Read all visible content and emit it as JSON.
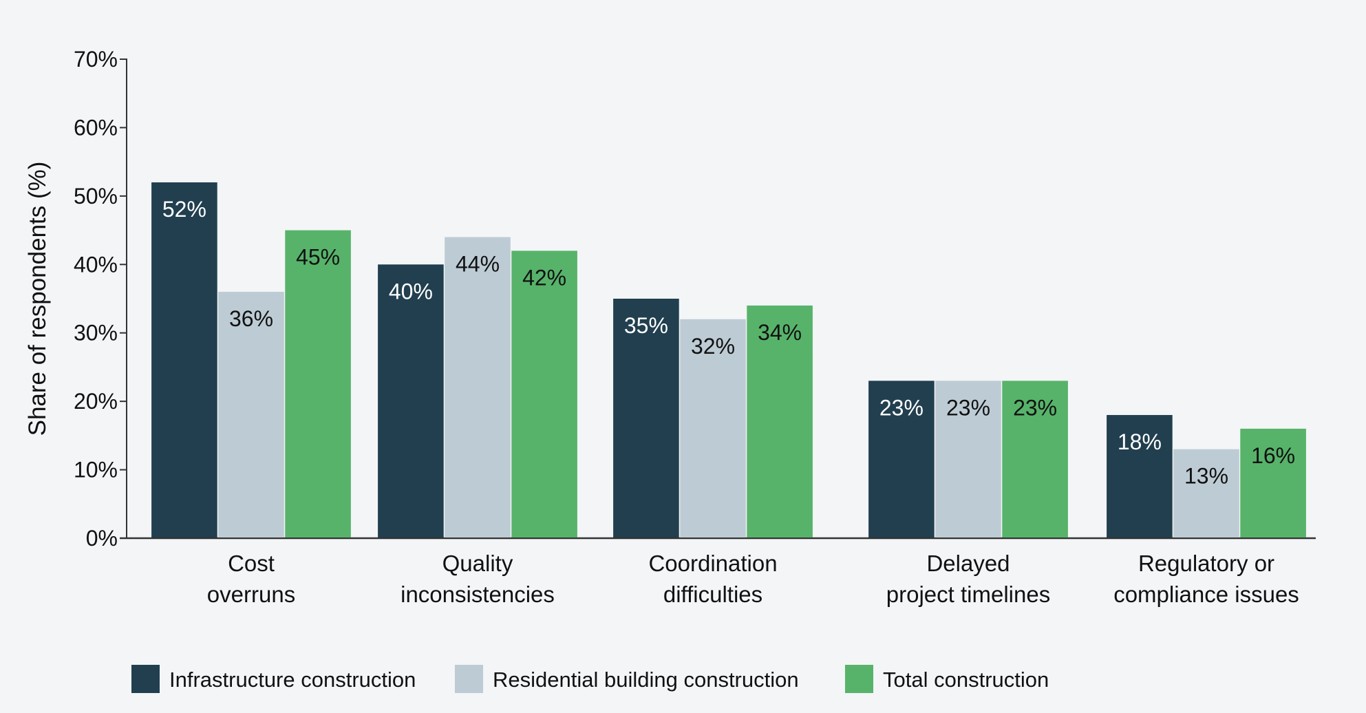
{
  "chart_data": {
    "type": "bar",
    "title": "",
    "xlabel": "",
    "ylabel": "Share of respondents (%)",
    "ylim": [
      0,
      70
    ],
    "yticks": [
      "0%",
      "10%",
      "20%",
      "30%",
      "40%",
      "50%",
      "60%",
      "70%"
    ],
    "grid": false,
    "legend_position": "bottom",
    "categories": [
      [
        "Cost",
        "overruns"
      ],
      [
        "Quality",
        "inconsistencies"
      ],
      [
        "Coordination",
        "difficulties"
      ],
      [
        "Delayed",
        "project timelines"
      ],
      [
        "Regulatory or",
        "compliance issues"
      ]
    ],
    "series": [
      {
        "name": "Infrastructure construction",
        "color": "#213f4f",
        "label_color": "#ffffff",
        "values": [
          52,
          40,
          35,
          23,
          18
        ],
        "labels": [
          "52%",
          "40%",
          "35%",
          "23%",
          "18%"
        ]
      },
      {
        "name": "Residential building construction",
        "color": "#bdcbd4",
        "label_color": "#111111",
        "values": [
          36,
          44,
          32,
          23,
          13
        ],
        "labels": [
          "36%",
          "44%",
          "32%",
          "23%",
          "13%"
        ]
      },
      {
        "name": "Total construction",
        "color": "#57b36a",
        "label_color": "#111111",
        "values": [
          45,
          42,
          34,
          23,
          16
        ],
        "labels": [
          "45%",
          "42%",
          "34%",
          "23%",
          "16%"
        ]
      }
    ]
  }
}
